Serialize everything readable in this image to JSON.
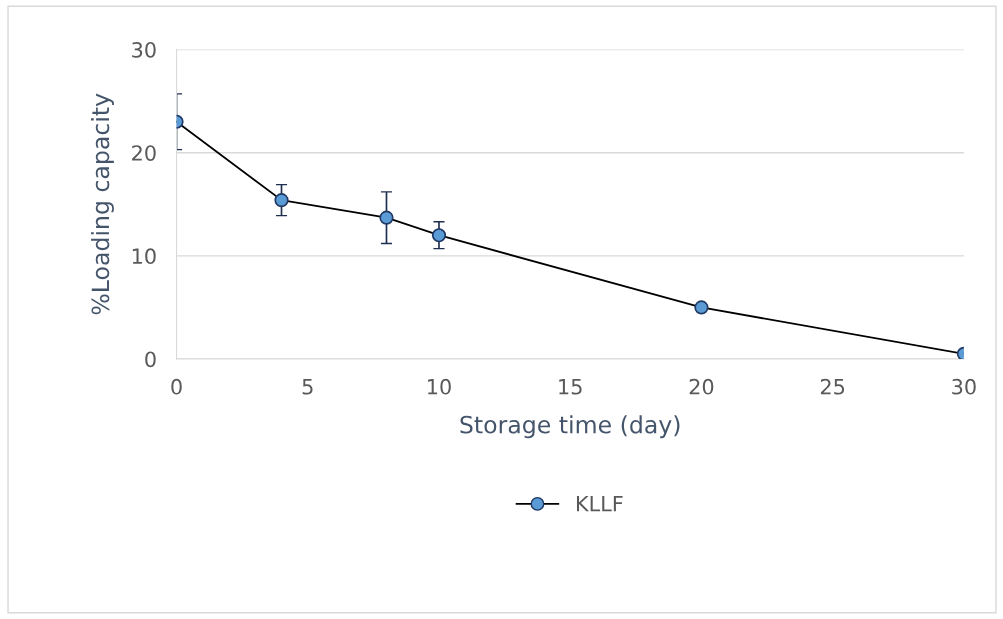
{
  "chart_data": {
    "type": "line",
    "xlabel": "Storage time (day)",
    "ylabel": "%Loading capacity",
    "x": [
      0,
      4,
      8,
      10,
      20,
      30
    ],
    "series": [
      {
        "name": "KLLF",
        "color": "#5b9bd5",
        "values": [
          23.0,
          15.4,
          13.7,
          12.0,
          5.0,
          0.5
        ],
        "errors": [
          2.7,
          1.5,
          2.5,
          1.3,
          null,
          null
        ]
      }
    ],
    "xlim": [
      0,
      30
    ],
    "xticks": [
      0,
      5,
      10,
      15,
      20,
      25,
      30
    ],
    "ylim": [
      0,
      30
    ],
    "yticks": [
      0,
      10,
      20,
      30
    ],
    "grid": "y",
    "legend": "bottom",
    "marker": "circle",
    "line_style": "solid"
  }
}
